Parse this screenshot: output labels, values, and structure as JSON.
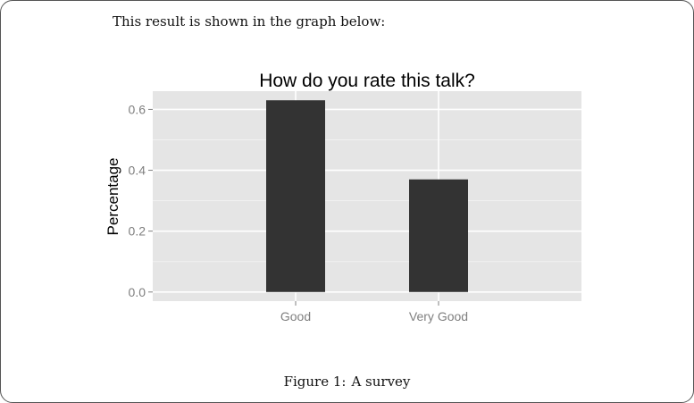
{
  "document": {
    "intro_text": "This result is shown in the graph below:",
    "caption_label": "Figure 1:",
    "caption_text": "A survey"
  },
  "chart_data": {
    "type": "bar",
    "title": "How do you rate this talk?",
    "categories": [
      "Good",
      "Very Good"
    ],
    "values": [
      0.63,
      0.37
    ],
    "xlabel": "",
    "ylabel": "Percentage",
    "ylim": [
      -0.03,
      0.66
    ],
    "yticks": [
      0.0,
      0.2,
      0.4,
      0.6
    ],
    "ytick_labels": [
      "0.0",
      "0.2",
      "0.4",
      "0.6"
    ],
    "grid": true,
    "legend": "none",
    "colors": {
      "panel_background": "#e5e5e5",
      "grid_line": "#ffffff",
      "bar_fill": "#333333",
      "tick_label": "#7f7f7f"
    }
  }
}
